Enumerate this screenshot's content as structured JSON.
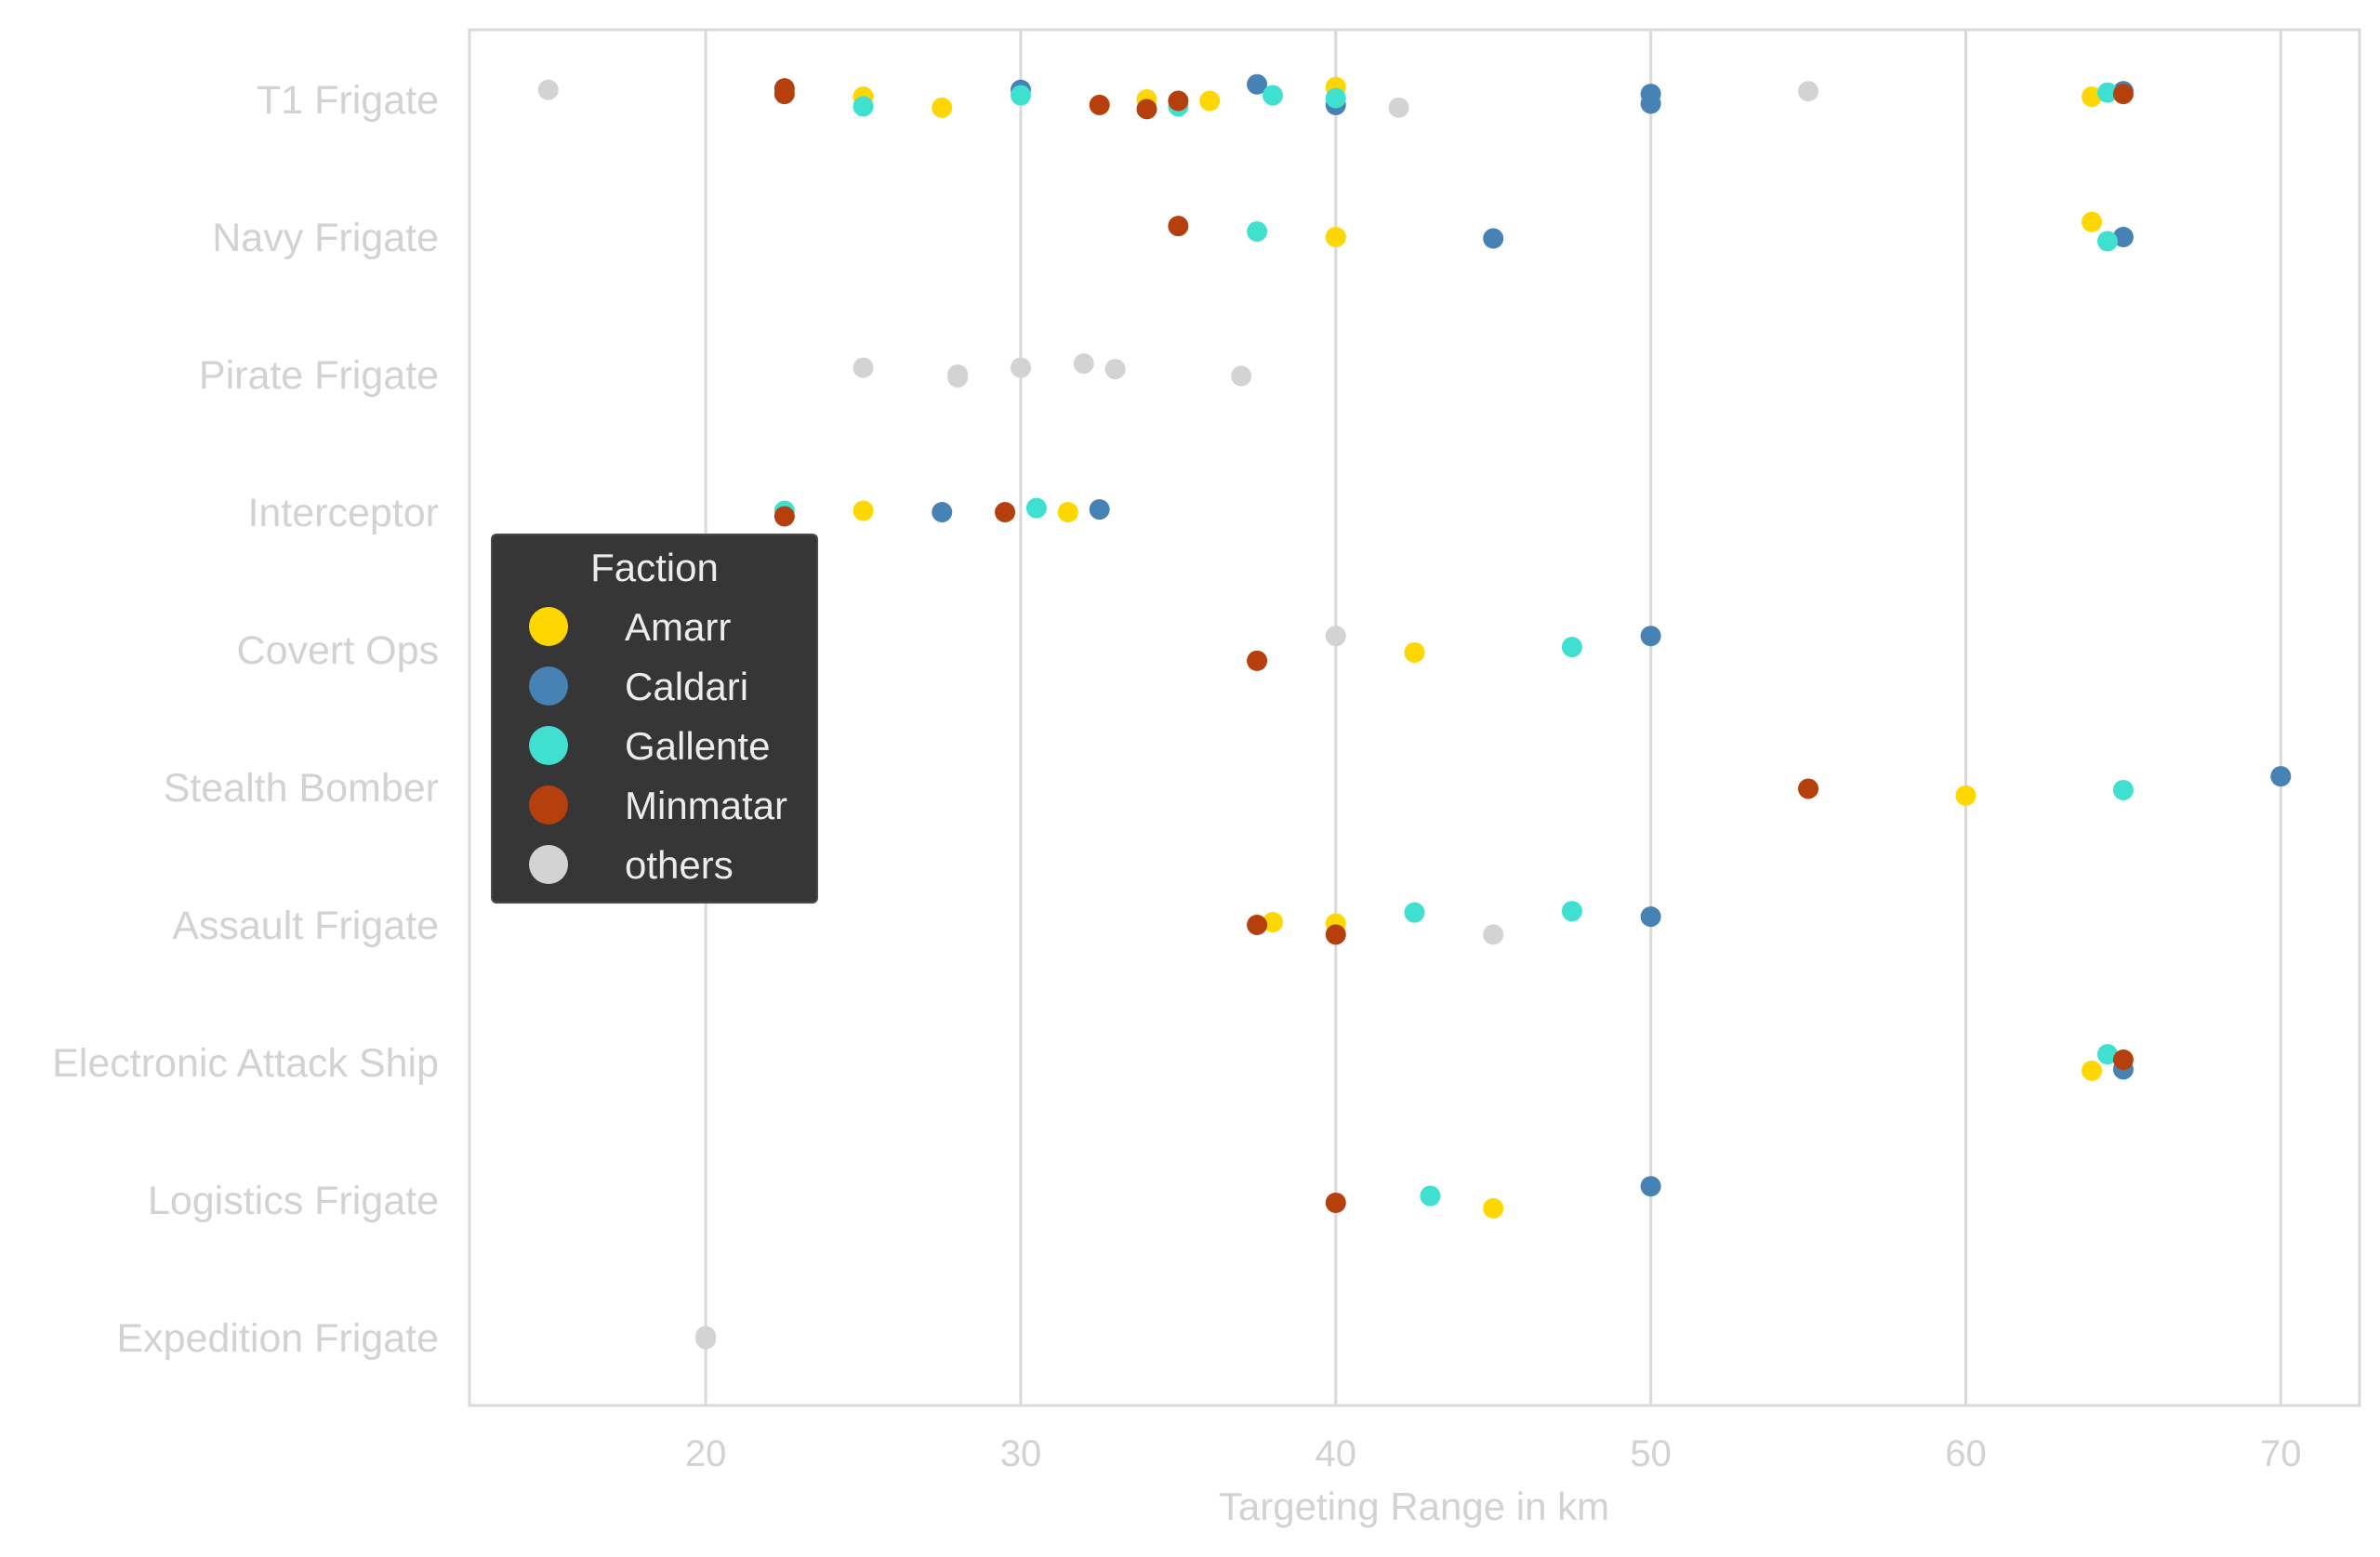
{
  "chart_data": {
    "type": "scatter",
    "subtype": "strip",
    "title": "",
    "xlabel": "Targeting Range in km",
    "ylabel": "",
    "xlim": [
      12.5,
      72.5
    ],
    "xticks": [
      20,
      30,
      40,
      50,
      60,
      70
    ],
    "grid": "vertical",
    "legend": {
      "title": "Faction",
      "placement": "center-left",
      "entries": [
        {
          "name": "Amarr",
          "color": "#FFD700"
        },
        {
          "name": "Caldari",
          "color": "#4682B4"
        },
        {
          "name": "Gallente",
          "color": "#40E0D0"
        },
        {
          "name": "Minmatar",
          "color": "#B5400D"
        },
        {
          "name": "others",
          "color": "#D3D3D3"
        }
      ]
    },
    "categories": [
      "T1 Frigate",
      "Navy Frigate",
      "Pirate Frigate",
      "Interceptor",
      "Covert Ops",
      "Stealth Bomber",
      "Assault Frigate",
      "Electronic Attack Ship",
      "Logistics Frigate",
      "Expedition Frigate"
    ],
    "series": [
      {
        "name": "Amarr",
        "color": "#FFD700",
        "points": [
          {
            "category": "T1 Frigate",
            "x": 25,
            "jitter": -0.02
          },
          {
            "category": "T1 Frigate",
            "x": 27.5,
            "jitter": 0.06
          },
          {
            "category": "T1 Frigate",
            "x": 34,
            "jitter": 0.0
          },
          {
            "category": "T1 Frigate",
            "x": 36,
            "jitter": 0.01
          },
          {
            "category": "T1 Frigate",
            "x": 40,
            "jitter": -0.09
          },
          {
            "category": "T1 Frigate",
            "x": 64,
            "jitter": -0.02
          },
          {
            "category": "Navy Frigate",
            "x": 40,
            "jitter": 0.0
          },
          {
            "category": "Navy Frigate",
            "x": 64,
            "jitter": -0.11
          },
          {
            "category": "Interceptor",
            "x": 25,
            "jitter": -0.01
          },
          {
            "category": "Interceptor",
            "x": 31.5,
            "jitter": 0.0
          },
          {
            "category": "Covert Ops",
            "x": 42.5,
            "jitter": 0.02
          },
          {
            "category": "Stealth Bomber",
            "x": 60,
            "jitter": 0.06
          },
          {
            "category": "Assault Frigate",
            "x": 38,
            "jitter": -0.02
          },
          {
            "category": "Assault Frigate",
            "x": 40,
            "jitter": -0.01
          },
          {
            "category": "Electronic Attack Ship",
            "x": 64,
            "jitter": 0.06
          },
          {
            "category": "Logistics Frigate",
            "x": 45,
            "jitter": 0.06
          }
        ]
      },
      {
        "name": "Caldari",
        "color": "#4682B4",
        "points": [
          {
            "category": "T1 Frigate",
            "x": 30,
            "jitter": -0.07
          },
          {
            "category": "T1 Frigate",
            "x": 37.5,
            "jitter": -0.11
          },
          {
            "category": "T1 Frigate",
            "x": 40,
            "jitter": 0.04
          },
          {
            "category": "T1 Frigate",
            "x": 50,
            "jitter": -0.04
          },
          {
            "category": "T1 Frigate",
            "x": 50,
            "jitter": 0.03
          },
          {
            "category": "T1 Frigate",
            "x": 65,
            "jitter": -0.06
          },
          {
            "category": "Navy Frigate",
            "x": 45,
            "jitter": 0.01
          },
          {
            "category": "Navy Frigate",
            "x": 65,
            "jitter": 0.0
          },
          {
            "category": "Interceptor",
            "x": 27.5,
            "jitter": 0.0
          },
          {
            "category": "Interceptor",
            "x": 32.5,
            "jitter": -0.02
          },
          {
            "category": "Covert Ops",
            "x": 50,
            "jitter": -0.1
          },
          {
            "category": "Stealth Bomber",
            "x": 70,
            "jitter": -0.08
          },
          {
            "category": "Assault Frigate",
            "x": 50,
            "jitter": -0.06
          },
          {
            "category": "Electronic Attack Ship",
            "x": 65,
            "jitter": 0.05
          },
          {
            "category": "Logistics Frigate",
            "x": 50,
            "jitter": -0.1
          }
        ]
      },
      {
        "name": "Gallente",
        "color": "#40E0D0",
        "points": [
          {
            "category": "T1 Frigate",
            "x": 25,
            "jitter": 0.05
          },
          {
            "category": "T1 Frigate",
            "x": 30,
            "jitter": -0.03
          },
          {
            "category": "T1 Frigate",
            "x": 35,
            "jitter": 0.05
          },
          {
            "category": "T1 Frigate",
            "x": 38,
            "jitter": -0.03
          },
          {
            "category": "T1 Frigate",
            "x": 40,
            "jitter": -0.01
          },
          {
            "category": "T1 Frigate",
            "x": 64.5,
            "jitter": -0.05
          },
          {
            "category": "Navy Frigate",
            "x": 37.5,
            "jitter": -0.04
          },
          {
            "category": "Navy Frigate",
            "x": 64.5,
            "jitter": 0.03
          },
          {
            "category": "Interceptor",
            "x": 22.5,
            "jitter": -0.01
          },
          {
            "category": "Interceptor",
            "x": 30.5,
            "jitter": -0.03
          },
          {
            "category": "Covert Ops",
            "x": 47.5,
            "jitter": -0.02
          },
          {
            "category": "Stealth Bomber",
            "x": 65,
            "jitter": 0.02
          },
          {
            "category": "Assault Frigate",
            "x": 42.5,
            "jitter": -0.09
          },
          {
            "category": "Assault Frigate",
            "x": 47.5,
            "jitter": -0.1
          },
          {
            "category": "Electronic Attack Ship",
            "x": 64.5,
            "jitter": -0.06
          },
          {
            "category": "Logistics Frigate",
            "x": 43,
            "jitter": -0.03
          }
        ]
      },
      {
        "name": "Minmatar",
        "color": "#B5400D",
        "points": [
          {
            "category": "T1 Frigate",
            "x": 22.5,
            "jitter": -0.08
          },
          {
            "category": "T1 Frigate",
            "x": 22.5,
            "jitter": -0.04
          },
          {
            "category": "T1 Frigate",
            "x": 32.5,
            "jitter": 0.04
          },
          {
            "category": "T1 Frigate",
            "x": 34,
            "jitter": 0.07
          },
          {
            "category": "T1 Frigate",
            "x": 35,
            "jitter": 0.01
          },
          {
            "category": "T1 Frigate",
            "x": 65,
            "jitter": -0.04
          },
          {
            "category": "Navy Frigate",
            "x": 35,
            "jitter": -0.08
          },
          {
            "category": "Interceptor",
            "x": 22.5,
            "jitter": 0.03
          },
          {
            "category": "Interceptor",
            "x": 29.5,
            "jitter": 0.0
          },
          {
            "category": "Covert Ops",
            "x": 37.5,
            "jitter": 0.08
          },
          {
            "category": "Stealth Bomber",
            "x": 55,
            "jitter": 0.01
          },
          {
            "category": "Assault Frigate",
            "x": 37.5,
            "jitter": 0.0
          },
          {
            "category": "Assault Frigate",
            "x": 40,
            "jitter": 0.07
          },
          {
            "category": "Electronic Attack Ship",
            "x": 65,
            "jitter": -0.02
          },
          {
            "category": "Logistics Frigate",
            "x": 40,
            "jitter": 0.02
          }
        ]
      },
      {
        "name": "others",
        "color": "#D3D3D3",
        "points": [
          {
            "category": "T1 Frigate",
            "x": 15,
            "jitter": -0.07
          },
          {
            "category": "T1 Frigate",
            "x": 42,
            "jitter": 0.06
          },
          {
            "category": "T1 Frigate",
            "x": 55,
            "jitter": -0.06
          },
          {
            "category": "Pirate Frigate",
            "x": 25,
            "jitter": -0.05
          },
          {
            "category": "Pirate Frigate",
            "x": 28,
            "jitter": 0.0
          },
          {
            "category": "Pirate Frigate",
            "x": 28,
            "jitter": 0.02
          },
          {
            "category": "Pirate Frigate",
            "x": 30,
            "jitter": -0.05
          },
          {
            "category": "Pirate Frigate",
            "x": 32,
            "jitter": -0.08
          },
          {
            "category": "Pirate Frigate",
            "x": 33,
            "jitter": -0.04
          },
          {
            "category": "Pirate Frigate",
            "x": 37,
            "jitter": 0.01
          },
          {
            "category": "Covert Ops",
            "x": 40,
            "jitter": -0.1
          },
          {
            "category": "Assault Frigate",
            "x": 45,
            "jitter": 0.07
          },
          {
            "category": "Expedition Frigate",
            "x": 20,
            "jitter": -0.01
          },
          {
            "category": "Expedition Frigate",
            "x": 20,
            "jitter": 0.01
          }
        ]
      }
    ]
  }
}
